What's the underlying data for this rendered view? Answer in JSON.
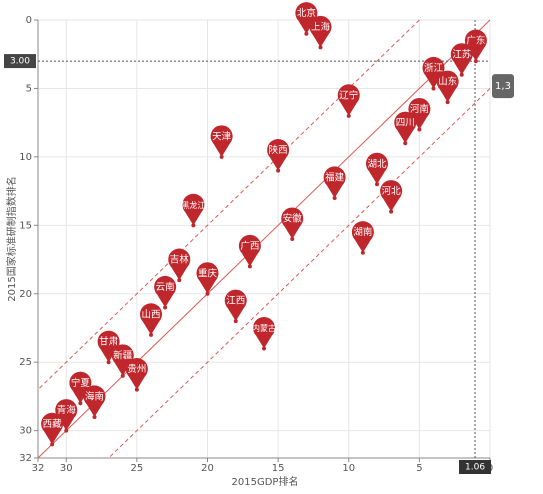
{
  "chart_data": {
    "type": "scatter",
    "xlabel": "2015GDP排名",
    "ylabel": "2015国家标准研制指数排名",
    "labels": [
      "北京",
      "上海",
      "广东",
      "江苏",
      "浙江",
      "山东",
      "河南",
      "辽宁",
      "四川",
      "湖北",
      "河北",
      "湖南",
      "福建",
      "天津",
      "陕西",
      "黑龙江",
      "安徽",
      "广西",
      "吉林",
      "重庆",
      "云南",
      "江西",
      "山西",
      "内蒙古",
      "甘肃",
      "新疆",
      "贵州",
      "宁夏",
      "海南",
      "青海",
      "西藏"
    ],
    "x": [
      13,
      12,
      1,
      2,
      4,
      3,
      5,
      10,
      6,
      8,
      7,
      9,
      11,
      19,
      15,
      21,
      14,
      17,
      22,
      20,
      23,
      18,
      24,
      16,
      27,
      26,
      25,
      29,
      28,
      30,
      31
    ],
    "values": [
      1,
      2,
      3,
      4,
      5,
      6,
      8,
      7,
      9,
      12,
      14,
      17,
      13,
      10,
      11,
      15,
      16,
      18,
      19,
      20,
      21,
      22,
      23,
      24,
      25,
      26,
      27,
      28,
      29,
      30,
      31
    ],
    "color": "#c0272d",
    "xlim": [
      32,
      0
    ],
    "ylim": [
      32,
      0
    ],
    "xticks": [
      32,
      30,
      25,
      20,
      15,
      10,
      5,
      0
    ],
    "yticks": [
      0,
      5,
      10,
      15,
      20,
      25,
      30,
      32
    ],
    "grid": true,
    "reference_lines": [
      {
        "offset": 0,
        "style": "solid"
      },
      {
        "offset": 5,
        "style": "dashed"
      },
      {
        "offset": -5,
        "style": "dashed"
      }
    ],
    "reference_color": "#e05a52",
    "pointer": {
      "x": 1.06,
      "y": {
        "value": 3,
        "label": "3.00"
      },
      "tooltip": "1,3"
    }
  }
}
